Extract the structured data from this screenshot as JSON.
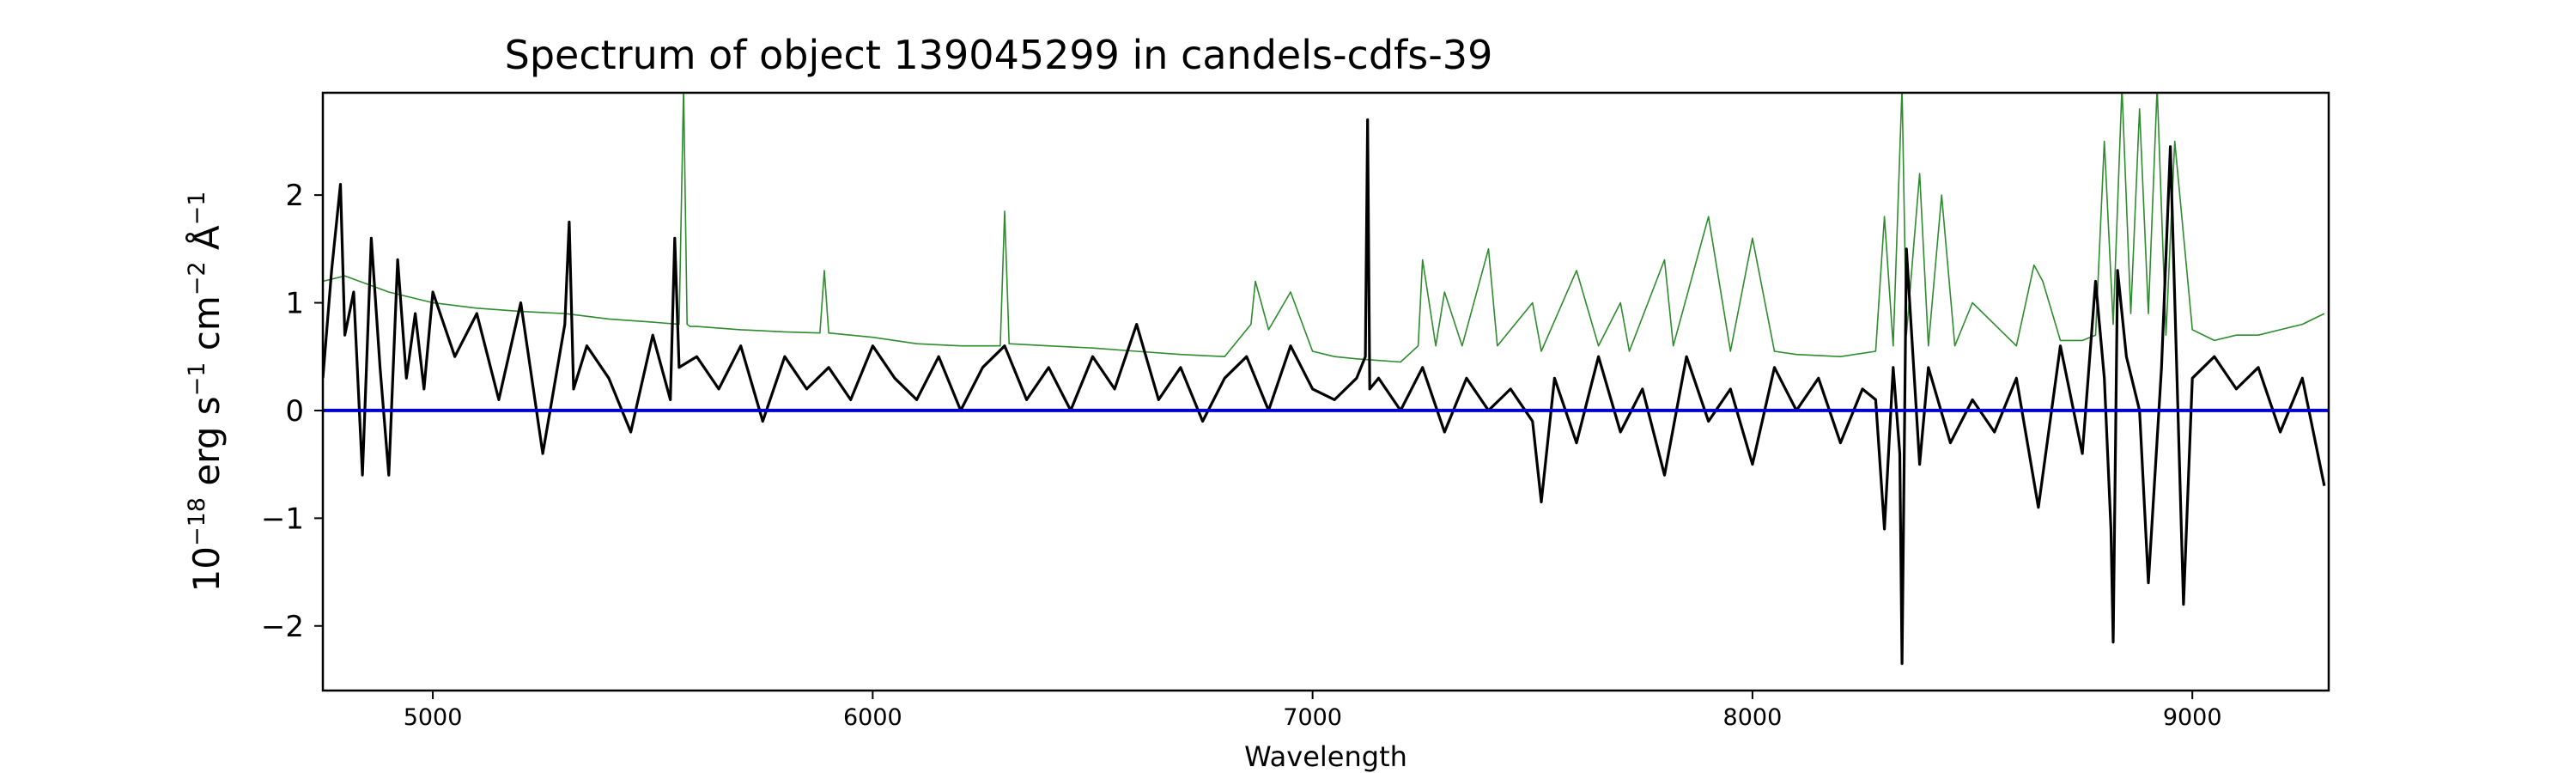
{
  "chart_data": {
    "type": "line",
    "title": "Spectrum of object 139045299 in candels-cdfs-39",
    "xlabel": "Wavelength",
    "ylabel": {
      "base": "10",
      "exp1": "−18",
      "mid1": " erg s",
      "exp2": "−1",
      "mid2": " cm",
      "exp3": "−2",
      "mid3": " Å",
      "exp4": "−1"
    },
    "xlim": [
      4750,
      9310
    ],
    "ylim": [
      -2.6,
      2.95
    ],
    "x_ticks": [
      5000,
      6000,
      7000,
      8000,
      9000
    ],
    "x_tick_labels": [
      "5000",
      "6000",
      "7000",
      "8000",
      "9000"
    ],
    "y_ticks": [
      -2,
      -1,
      0,
      1,
      2
    ],
    "y_tick_labels": [
      "−2",
      "−1",
      "0",
      "1",
      "2"
    ],
    "grid": false,
    "legend": "none",
    "series": [
      {
        "role": "zero-line",
        "color": "#0000cc",
        "x": [
          4750,
          9310
        ],
        "y": [
          0,
          0
        ]
      },
      {
        "role": "sky-error",
        "color": "#2e8b2e",
        "x": [
          4750,
          4800,
          4900,
          5000,
          5100,
          5200,
          5300,
          5400,
          5500,
          5560,
          5570,
          5578,
          5585,
          5600,
          5700,
          5800,
          5880,
          5890,
          5900,
          5950,
          6000,
          6100,
          6200,
          6290,
          6300,
          6310,
          6400,
          6500,
          6600,
          6700,
          6800,
          6860,
          6870,
          6900,
          6950,
          7000,
          7050,
          7100,
          7200,
          7240,
          7250,
          7280,
          7300,
          7340,
          7400,
          7420,
          7500,
          7520,
          7600,
          7650,
          7700,
          7720,
          7800,
          7820,
          7900,
          7950,
          8000,
          8050,
          8100,
          8200,
          8280,
          8300,
          8320,
          8340,
          8350,
          8380,
          8400,
          8430,
          8460,
          8500,
          8550,
          8600,
          8640,
          8660,
          8700,
          8750,
          8780,
          8800,
          8820,
          8840,
          8860,
          8880,
          8900,
          8920,
          8940,
          8960,
          9000,
          9050,
          9100,
          9150,
          9200,
          9250,
          9300
        ],
        "y": [
          1.2,
          1.25,
          1.1,
          1.0,
          0.95,
          0.92,
          0.9,
          0.85,
          0.82,
          0.8,
          3.0,
          0.8,
          0.78,
          0.78,
          0.75,
          0.73,
          0.72,
          1.3,
          0.72,
          0.7,
          0.68,
          0.62,
          0.6,
          0.6,
          1.85,
          0.62,
          0.6,
          0.58,
          0.55,
          0.52,
          0.5,
          0.8,
          1.2,
          0.75,
          1.1,
          0.55,
          0.5,
          0.48,
          0.45,
          0.6,
          1.4,
          0.6,
          1.1,
          0.6,
          1.5,
          0.6,
          1.0,
          0.55,
          1.3,
          0.6,
          1.0,
          0.55,
          1.4,
          0.6,
          1.8,
          0.55,
          1.6,
          0.55,
          0.52,
          0.5,
          0.55,
          1.8,
          0.6,
          3.0,
          0.7,
          2.2,
          0.6,
          2.0,
          0.6,
          1.0,
          0.8,
          0.6,
          1.35,
          1.2,
          0.65,
          0.65,
          0.7,
          2.5,
          0.8,
          3.0,
          0.9,
          2.8,
          0.9,
          3.0,
          0.7,
          2.5,
          0.75,
          0.65,
          0.7,
          0.7,
          0.75,
          0.8,
          0.9
        ]
      },
      {
        "role": "flux",
        "color": "#000000",
        "x": [
          4750,
          4770,
          4790,
          4800,
          4820,
          4840,
          4860,
          4880,
          4900,
          4920,
          4940,
          4960,
          4980,
          5000,
          5050,
          5100,
          5150,
          5200,
          5250,
          5300,
          5310,
          5320,
          5350,
          5400,
          5450,
          5500,
          5540,
          5550,
          5560,
          5600,
          5650,
          5700,
          5750,
          5800,
          5850,
          5900,
          5950,
          6000,
          6050,
          6100,
          6150,
          6200,
          6250,
          6300,
          6350,
          6400,
          6450,
          6500,
          6550,
          6600,
          6650,
          6700,
          6750,
          6800,
          6850,
          6900,
          6950,
          7000,
          7050,
          7100,
          7120,
          7125,
          7130,
          7150,
          7200,
          7250,
          7300,
          7350,
          7400,
          7450,
          7500,
          7520,
          7550,
          7600,
          7650,
          7700,
          7750,
          7800,
          7850,
          7900,
          7950,
          8000,
          8050,
          8100,
          8150,
          8200,
          8250,
          8280,
          8300,
          8320,
          8335,
          8340,
          8350,
          8380,
          8400,
          8450,
          8500,
          8550,
          8600,
          8650,
          8700,
          8750,
          8780,
          8800,
          8815,
          8820,
          8830,
          8850,
          8880,
          8900,
          8930,
          8950,
          8980,
          9000,
          9050,
          9100,
          9150,
          9200,
          9250,
          9300
        ],
        "y": [
          0.3,
          1.3,
          2.1,
          0.7,
          1.1,
          -0.6,
          1.6,
          0.4,
          -0.6,
          1.4,
          0.3,
          0.9,
          0.2,
          1.1,
          0.5,
          0.9,
          0.1,
          1.0,
          -0.4,
          0.8,
          1.75,
          0.2,
          0.6,
          0.3,
          -0.2,
          0.7,
          0.1,
          1.6,
          0.4,
          0.5,
          0.2,
          0.6,
          -0.1,
          0.5,
          0.2,
          0.4,
          0.1,
          0.6,
          0.3,
          0.1,
          0.5,
          0.0,
          0.4,
          0.6,
          0.1,
          0.4,
          0.0,
          0.5,
          0.2,
          0.8,
          0.1,
          0.4,
          -0.1,
          0.3,
          0.5,
          0.0,
          0.6,
          0.2,
          0.1,
          0.3,
          0.5,
          2.7,
          0.2,
          0.3,
          0.0,
          0.4,
          -0.2,
          0.3,
          0.0,
          0.2,
          -0.1,
          -0.85,
          0.3,
          -0.3,
          0.5,
          -0.2,
          0.2,
          -0.6,
          0.5,
          -0.1,
          0.2,
          -0.5,
          0.4,
          0.0,
          0.3,
          -0.3,
          0.2,
          0.1,
          -1.1,
          0.4,
          -0.4,
          -2.35,
          1.5,
          -0.5,
          0.4,
          -0.3,
          0.1,
          -0.2,
          0.3,
          -0.9,
          0.6,
          -0.4,
          1.2,
          0.3,
          -1.1,
          -2.15,
          1.3,
          0.5,
          0.0,
          -1.6,
          0.4,
          2.45,
          -1.8,
          0.3,
          0.5,
          0.2,
          0.4,
          -0.2,
          0.3,
          -0.7
        ]
      }
    ]
  }
}
